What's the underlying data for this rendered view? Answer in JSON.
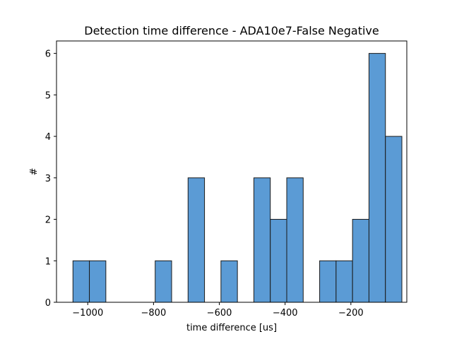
{
  "chart_data": {
    "type": "bar",
    "title": "Detection time difference - ADA10e7-False Negative",
    "xlabel": "time difference [us]",
    "ylabel": "#",
    "xlim": [
      -1095,
      -30
    ],
    "ylim": [
      0,
      6.3
    ],
    "xticks": [
      -1000,
      -800,
      -600,
      -400,
      -200
    ],
    "xtick_labels": [
      "−1000",
      "−800",
      "−600",
      "−400",
      "−200"
    ],
    "yticks": [
      0,
      1,
      2,
      3,
      4,
      5,
      6
    ],
    "ytick_labels": [
      "0",
      "1",
      "2",
      "3",
      "4",
      "5",
      "6"
    ],
    "bin_width": 50,
    "bars": [
      {
        "x0": -1045,
        "value": 1
      },
      {
        "x0": -995,
        "value": 1
      },
      {
        "x0": -795,
        "value": 1
      },
      {
        "x0": -695,
        "value": 3
      },
      {
        "x0": -595,
        "value": 1
      },
      {
        "x0": -495,
        "value": 3
      },
      {
        "x0": -445,
        "value": 2
      },
      {
        "x0": -395,
        "value": 3
      },
      {
        "x0": -295,
        "value": 1
      },
      {
        "x0": -245,
        "value": 1
      },
      {
        "x0": -195,
        "value": 2
      },
      {
        "x0": -145,
        "value": 6
      },
      {
        "x0": -95,
        "value": 4
      }
    ],
    "grid": false,
    "bar_color": "#5b9bd5",
    "bar_edge_color": "#1a1a1a"
  }
}
